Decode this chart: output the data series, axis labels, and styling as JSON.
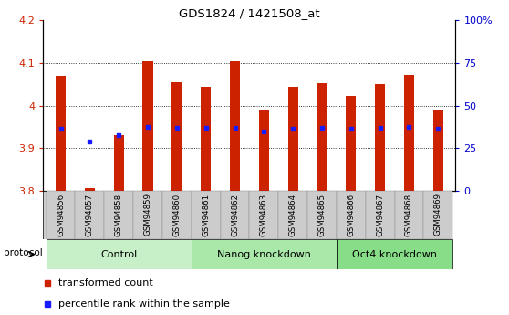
{
  "title": "GDS1824 / 1421508_at",
  "samples": [
    "GSM94856",
    "GSM94857",
    "GSM94858",
    "GSM94859",
    "GSM94860",
    "GSM94861",
    "GSM94862",
    "GSM94863",
    "GSM94864",
    "GSM94865",
    "GSM94866",
    "GSM94867",
    "GSM94868",
    "GSM94869"
  ],
  "bar_values": [
    4.07,
    3.805,
    3.93,
    4.105,
    4.055,
    4.045,
    4.105,
    3.99,
    4.045,
    4.053,
    4.022,
    4.05,
    4.072,
    3.99
  ],
  "dot_values": [
    3.945,
    3.916,
    3.93,
    3.95,
    3.948,
    3.948,
    3.948,
    3.94,
    3.945,
    3.948,
    3.945,
    3.948,
    3.95,
    3.945
  ],
  "bar_bottom": 3.8,
  "ylim_min": 3.8,
  "ylim_max": 4.2,
  "bar_color": "#cc2200",
  "dot_color": "#1a1aff",
  "groups": [
    {
      "label": "Control",
      "start": 0,
      "end": 4,
      "color": "#c8f0c8"
    },
    {
      "label": "Nanog knockdown",
      "start": 5,
      "end": 9,
      "color": "#aae8aa"
    },
    {
      "label": "Oct4 knockdown",
      "start": 10,
      "end": 13,
      "color": "#88dd88"
    }
  ],
  "protocol_label": "protocol",
  "right_yticks": [
    0,
    25,
    50,
    75,
    100
  ],
  "right_ytick_labels": [
    "0",
    "25",
    "50",
    "75",
    "100%"
  ],
  "legend_items": [
    {
      "label": "transformed count",
      "color": "#cc2200",
      "marker": "s"
    },
    {
      "label": "percentile rank within the sample",
      "color": "#1a1aff",
      "marker": "s"
    }
  ],
  "tick_color_left": "#cc2200",
  "tick_color_right": "#0000cc",
  "yticks": [
    3.8,
    3.9,
    4.0,
    4.1,
    4.2
  ],
  "ytick_labels": [
    "3.8",
    "3.9",
    "4",
    "4.1",
    "4.2"
  ],
  "bar_width": 0.35,
  "sample_bg": "#cccccc",
  "grid_yticks": [
    3.9,
    4.0,
    4.1
  ]
}
